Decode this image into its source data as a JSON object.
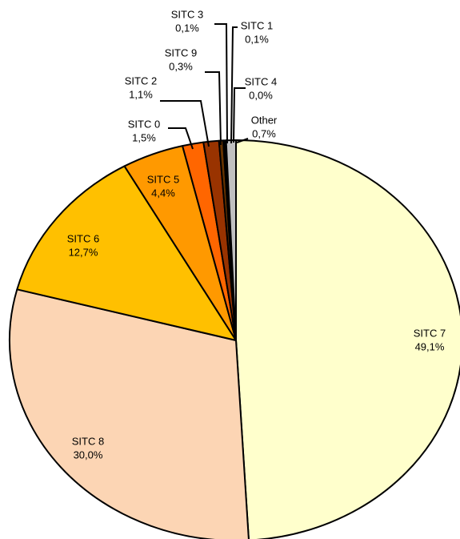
{
  "chart_data": {
    "type": "pie",
    "categories": [
      "SITC 7",
      "SITC 8",
      "SITC 6",
      "SITC 5",
      "SITC 0",
      "SITC 2",
      "SITC 9",
      "SITC 3",
      "SITC 1",
      "SITC 4",
      "Other"
    ],
    "values": [
      49.1,
      30.0,
      12.7,
      4.4,
      1.5,
      1.1,
      0.3,
      0.1,
      0.1,
      0.0,
      0.7
    ],
    "value_labels": [
      "49,1%",
      "30,0%",
      "12,7%",
      "4,4%",
      "1,5%",
      "1,1%",
      "0,3%",
      "0,1%",
      "0,1%",
      "0,0%",
      "0,7%"
    ],
    "colors": [
      "#ffffcc",
      "#fcd5b4",
      "#ffc000",
      "#ff9900",
      "#ff6600",
      "#993300",
      "#663300",
      "#000000",
      "#333333",
      "#808080",
      "#c0c0c0"
    ]
  }
}
